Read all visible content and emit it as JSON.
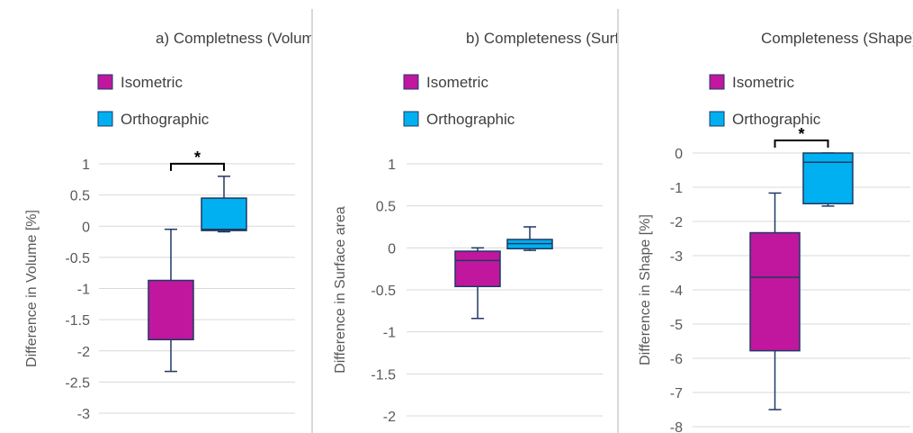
{
  "colors": {
    "isometric": "#C0179E",
    "orthographic": "#00B0F0",
    "outline": "#1F3864",
    "grid": "#D9D9D9",
    "significance": "#000000"
  },
  "chart_data": [
    {
      "type": "box",
      "title": "a) Completness (Volume)",
      "ylabel": "Difference in Volume [%]",
      "xlabel": "",
      "ylim": [
        -3,
        1
      ],
      "yticks": [
        1,
        0.5,
        0,
        -0.5,
        -1,
        -1.5,
        -2,
        -2.5,
        -3
      ],
      "ytick_labels": [
        "1",
        "0.5",
        "0",
        "-0.5",
        "-1",
        "-1.5",
        "-2",
        "-2.5",
        "-3"
      ],
      "grid": true,
      "legend_position": "top",
      "series": [
        {
          "name": "Isometric",
          "min": -2.33,
          "q1": -1.82,
          "median": -1.82,
          "q3": -0.87,
          "max": -0.05
        },
        {
          "name": "Orthographic",
          "min": -0.09,
          "q1": -0.07,
          "median": -0.05,
          "q3": 0.45,
          "max": 0.8
        }
      ],
      "significance": {
        "label": "*",
        "between": [
          "Isometric",
          "Orthographic"
        ]
      }
    },
    {
      "type": "box",
      "title": "b) Completeness (Surface area)",
      "ylabel": "Difference in Surface area",
      "xlabel": "",
      "ylim": [
        -2,
        1
      ],
      "yticks": [
        1,
        0.5,
        0,
        -0.5,
        -1,
        -1.5,
        -2
      ],
      "ytick_labels": [
        "1",
        "0.5",
        "0",
        "-0.5",
        "-1",
        "-1.5",
        "-2"
      ],
      "grid": true,
      "legend_position": "top",
      "series": [
        {
          "name": "Isometric",
          "min": -0.84,
          "q1": -0.46,
          "median": -0.15,
          "q3": -0.04,
          "max": 0.0
        },
        {
          "name": "Orthographic",
          "min": -0.03,
          "q1": -0.01,
          "median": 0.05,
          "q3": 0.1,
          "max": 0.25
        }
      ],
      "significance": null
    },
    {
      "type": "box",
      "title": "Completeness (Shape)",
      "ylabel": "Difference in Shape [%]",
      "xlabel": "",
      "ylim": [
        -8,
        0
      ],
      "yticks": [
        0,
        -1,
        -2,
        -3,
        -4,
        -5,
        -6,
        -7,
        -8
      ],
      "ytick_labels": [
        "0",
        "-1",
        "-2",
        "-3",
        "-4",
        "-5",
        "-6",
        "-7",
        "-8"
      ],
      "grid": true,
      "legend_position": "top",
      "series": [
        {
          "name": "Isometric",
          "min": -7.5,
          "q1": -5.78,
          "median": -3.63,
          "q3": -2.33,
          "max": -1.17
        },
        {
          "name": "Orthographic",
          "min": -1.55,
          "q1": -1.48,
          "median": -0.27,
          "q3": 0.0,
          "max": 0.0
        }
      ],
      "significance": {
        "label": "*",
        "between": [
          "Isometric",
          "Orthographic"
        ]
      }
    }
  ]
}
